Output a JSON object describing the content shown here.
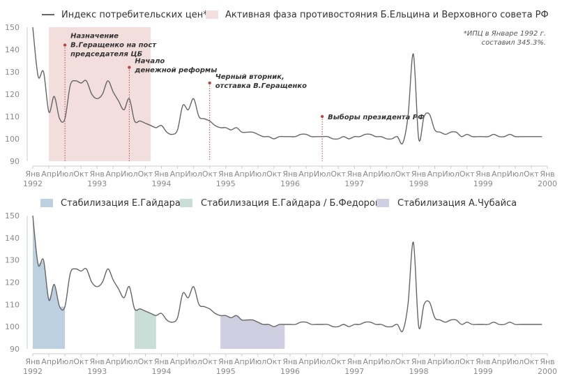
{
  "colors": {
    "line": "#666666",
    "axis_text": "#8a8a8a",
    "grid": "#cccccc",
    "confrontation": "#f3dede",
    "gaidar": "#bcd0e0",
    "gaidar_fedorov": "#c8ded6",
    "chubais": "#d0cfe1",
    "event_marker": "#b84848",
    "annotation_text": "#333333"
  },
  "legend_top": {
    "line_label": "Индекс потребительских цен*",
    "area_label": "Активная фаза противостояния Б.Ельцина и Верховного совета РФ"
  },
  "legend_bottom": {
    "gaidar": "Стабилизация Е.Гайдара",
    "gaidar_fedorov": "Стабилизация Е.Гайдара / Б.Федорова",
    "chubais": "Стабилизация А.Чубайса"
  },
  "footnote": [
    "*ИПЦ в Январе 1992 г.",
    "составил 345.3%."
  ],
  "chart_data": [
    {
      "type": "line",
      "title": "",
      "xlabel": "",
      "ylabel": "",
      "ylim": [
        90,
        150
      ],
      "yticks": [
        90,
        100,
        110,
        120,
        130,
        140,
        150
      ],
      "xlim": [
        1992.0,
        2000.0
      ],
      "month_ticks": [
        "Янв",
        "Апр",
        "Июл",
        "Окт"
      ],
      "year_ticks": [
        "1992",
        "1993",
        "1994",
        "1995",
        "1996",
        "1997",
        "1998",
        "1999",
        "2000"
      ],
      "grid": false,
      "legend": "top",
      "series": [
        {
          "name": "Индекс потребительских цен*",
          "x": [
            1992.0,
            1992.083,
            1992.167,
            1992.25,
            1992.333,
            1992.417,
            1992.5,
            1992.583,
            1992.667,
            1992.75,
            1992.833,
            1992.917,
            1993.0,
            1993.083,
            1993.167,
            1993.25,
            1993.333,
            1993.417,
            1993.5,
            1993.583,
            1993.667,
            1993.75,
            1993.833,
            1993.917,
            1994.0,
            1994.083,
            1994.167,
            1994.25,
            1994.333,
            1994.417,
            1994.5,
            1994.583,
            1994.667,
            1994.75,
            1994.833,
            1994.917,
            1995.0,
            1995.083,
            1995.167,
            1995.25,
            1995.333,
            1995.417,
            1995.5,
            1995.583,
            1995.667,
            1995.75,
            1995.833,
            1995.917,
            1996.0,
            1996.083,
            1996.167,
            1996.25,
            1996.333,
            1996.417,
            1996.5,
            1996.583,
            1996.667,
            1996.75,
            1996.833,
            1996.917,
            1997.0,
            1997.083,
            1997.167,
            1997.25,
            1997.333,
            1997.417,
            1997.5,
            1997.583,
            1997.667,
            1997.75,
            1997.833,
            1997.917,
            1998.0,
            1998.083,
            1998.167,
            1998.25,
            1998.333,
            1998.417,
            1998.5,
            1998.583,
            1998.667,
            1998.75,
            1998.833,
            1998.917,
            1999.0,
            1999.083,
            1999.167,
            1999.25,
            1999.333,
            1999.417,
            1999.5,
            1999.583,
            1999.667,
            1999.75,
            1999.833,
            1999.917
          ],
          "y": [
            150,
            128,
            130,
            112,
            119,
            109,
            109,
            124,
            126,
            125,
            126,
            120,
            118,
            120,
            126,
            121,
            117,
            113,
            118,
            108,
            108,
            107,
            106,
            105,
            106,
            103,
            102,
            104,
            115,
            113,
            118,
            110,
            109,
            108,
            106,
            105,
            105,
            104,
            105,
            103,
            103,
            103,
            102,
            101,
            101,
            100,
            101,
            101,
            101,
            101,
            102,
            102,
            101,
            101,
            101,
            101,
            100,
            100,
            101,
            100,
            101,
            101,
            102,
            102,
            101,
            101,
            100,
            100,
            101,
            98,
            110,
            138,
            100,
            110,
            111,
            104,
            103,
            102,
            103,
            103,
            101,
            102,
            101,
            101,
            101,
            101,
            102,
            101,
            101,
            102,
            101,
            101,
            101,
            101,
            101,
            101
          ]
        }
      ],
      "shaded_periods": [
        {
          "label": "Активная фаза противостояния Б.Ельцина и Верховного совета РФ",
          "start": 1992.25,
          "end": 1993.833
        }
      ],
      "events": [
        {
          "x": 1992.5,
          "y": 142,
          "text": [
            "Назначение",
            "В.Геращенко на пост",
            "председателя ЦБ"
          ]
        },
        {
          "x": 1993.5,
          "y": 132,
          "text": [
            "Начало",
            "денежной реформы"
          ]
        },
        {
          "x": 1994.75,
          "y": 125,
          "text": [
            "Черный вторник,",
            "отставка В.Геращенко"
          ]
        },
        {
          "x": 1996.5,
          "y": 110,
          "text": [
            "Выборы президента РФ"
          ]
        }
      ]
    },
    {
      "type": "area",
      "title": "",
      "xlabel": "",
      "ylabel": "",
      "ylim": [
        90,
        150
      ],
      "yticks": [
        90,
        100,
        110,
        120,
        130,
        140,
        150
      ],
      "xlim": [
        1992.0,
        2000.0
      ],
      "grid": false,
      "legend": "top",
      "series_ref": "same CPI series as above",
      "shaded_periods": [
        {
          "label": "Стабилизация Е.Гайдара",
          "start": 1992.0,
          "end": 1992.5
        },
        {
          "label": "Стабилизация Е.Гайдара / Б.Федорова",
          "start": 1993.583,
          "end": 1993.917
        },
        {
          "label": "Стабилизация А.Чубайса",
          "start": 1994.917,
          "end": 1995.917
        }
      ]
    }
  ]
}
